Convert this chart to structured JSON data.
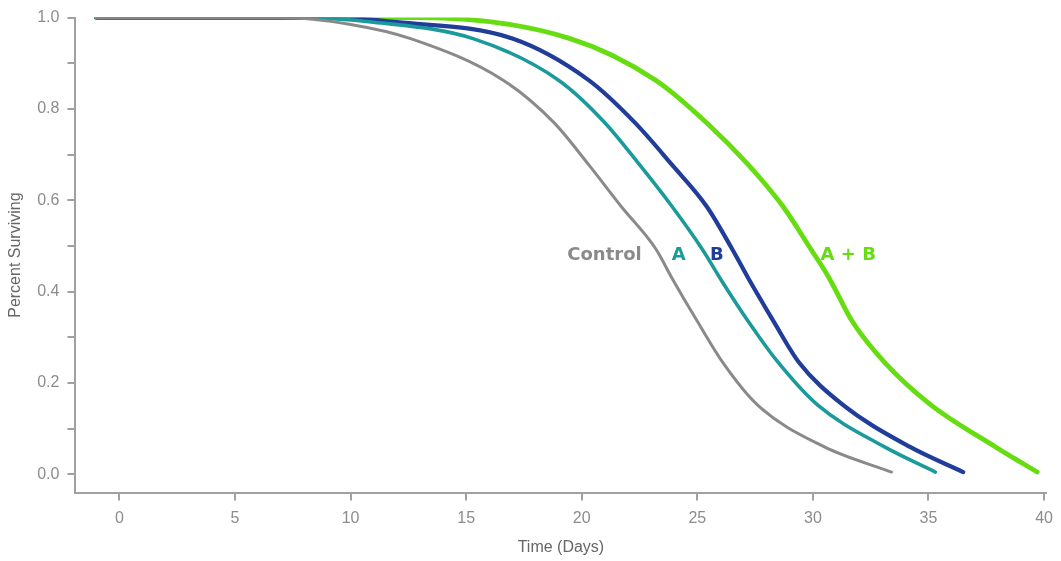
{
  "chart_data": {
    "type": "line",
    "xlabel": "Time (Days)",
    "ylabel": "Percent Surviving",
    "xlim": [
      -1.9,
      40.1
    ],
    "xticks": [
      0,
      5,
      10,
      15,
      20,
      25,
      30,
      35,
      40
    ],
    "ylim": [
      -0.04,
      1.0
    ],
    "yticks": [
      {
        "value": 0,
        "label": "0.0"
      },
      {
        "value": 0.1,
        "label": null
      },
      {
        "value": 0.2,
        "label": "0.2"
      },
      {
        "value": 0.3,
        "label": null
      },
      {
        "value": 0.4,
        "label": "0.4"
      },
      {
        "value": 0.5,
        "label": null
      },
      {
        "value": 0.6,
        "label": "0.6"
      },
      {
        "value": 0.7,
        "label": null
      },
      {
        "value": 0.8,
        "label": "0.8"
      },
      {
        "value": 0.9,
        "label": null
      },
      {
        "value": 1.0,
        "label": "1.0"
      }
    ],
    "legend": false,
    "marker": "none",
    "line_style": "solid",
    "series": [
      {
        "name": "Control",
        "color": "#8a8a8a",
        "x": [
          -1,
          7,
          10,
          12.6,
          16.6,
          18.8,
          20.3,
          21.7,
          23.2,
          23.9,
          25,
          26.1,
          27.6,
          30.5,
          33.4
        ],
        "values": [
          1,
          1,
          0.985,
          0.954,
          0.863,
          0.77,
          0.678,
          0.587,
          0.494,
          0.43,
          0.335,
          0.245,
          0.152,
          0.06,
          0.005
        ]
      },
      {
        "name": "A",
        "color": "#1a9a9a",
        "x": [
          -1,
          8,
          11,
          15.3,
          19,
          21,
          22.5,
          23.9,
          25.2,
          26.1,
          27.2,
          28.5,
          30.2,
          33.1,
          35.3
        ],
        "values": [
          1,
          1,
          0.99,
          0.954,
          0.863,
          0.77,
          0.678,
          0.587,
          0.494,
          0.42,
          0.335,
          0.245,
          0.152,
          0.06,
          0.005
        ]
      },
      {
        "name": "B",
        "color": "#1f3d99",
        "x": [
          -1,
          9,
          12,
          17,
          20.3,
          22.3,
          23.9,
          25.4,
          26.5,
          27.2,
          28.3,
          29.4,
          31.3,
          34.2,
          36.5
        ],
        "values": [
          1,
          1,
          0.99,
          0.954,
          0.863,
          0.77,
          0.678,
          0.587,
          0.494,
          0.43,
          0.335,
          0.245,
          0.152,
          0.06,
          0.005
        ]
      },
      {
        "name": "A + B",
        "color": "#66dd11",
        "x": [
          -1,
          13,
          19.5,
          23.2,
          25.4,
          27.2,
          28.7,
          29.9,
          30.7,
          31.7,
          33.1,
          35.1,
          37.9,
          39.7
        ],
        "values": [
          1,
          1,
          0.954,
          0.863,
          0.77,
          0.678,
          0.587,
          0.494,
          0.43,
          0.335,
          0.245,
          0.152,
          0.06,
          0.005
        ]
      }
    ]
  }
}
